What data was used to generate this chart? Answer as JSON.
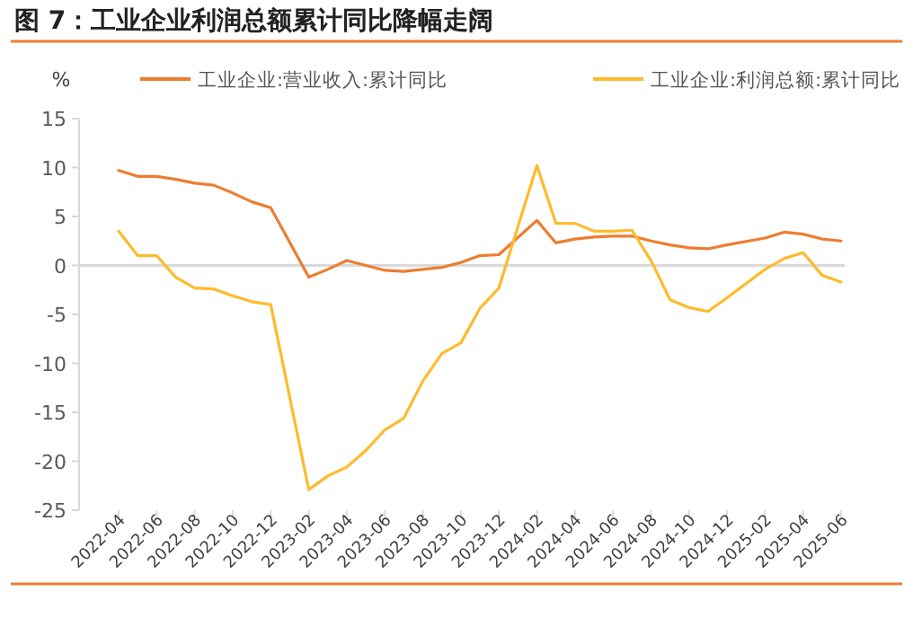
{
  "chart_data": {
    "type": "line",
    "title": "图 7：工业企业利润总额累计同比降幅走阔",
    "ylabel": "%",
    "categories": [
      "2022-04",
      null,
      "2022-06",
      null,
      "2022-08",
      null,
      "2022-10",
      null,
      "2022-12",
      null,
      "2023-02",
      null,
      "2023-04",
      null,
      "2023-06",
      null,
      "2023-08",
      null,
      "2023-10",
      null,
      "2023-12",
      null,
      "2024-02",
      null,
      "2024-04",
      null,
      "2024-06",
      null,
      "2024-08",
      null,
      "2024-10",
      null,
      "2024-12",
      null,
      "2025-02",
      null,
      "2025-04",
      null,
      "2025-06"
    ],
    "series": [
      {
        "name": "工业企业:营业收入:累计同比",
        "color": "#ed7d31",
        "values": [
          9.7,
          9.1,
          9.1,
          8.8,
          8.4,
          8.2,
          7.4,
          6.5,
          5.9,
          null,
          -1.2,
          -0.4,
          0.5,
          0.0,
          -0.5,
          -0.6,
          -0.4,
          -0.2,
          0.3,
          1.0,
          1.1,
          null,
          4.6,
          2.3,
          2.7,
          2.9,
          3.0,
          3.0,
          2.5,
          2.1,
          1.8,
          1.7,
          2.1,
          null,
          2.8,
          3.4,
          3.2,
          2.7,
          2.5
        ]
      },
      {
        "name": "工业企业:利润总额:累计同比",
        "color": "#fdbb2d",
        "values": [
          3.5,
          1.0,
          1.0,
          -1.2,
          -2.3,
          -2.4,
          -3.1,
          -3.7,
          -4.0,
          null,
          -22.9,
          -21.5,
          -20.6,
          -18.9,
          -16.8,
          -15.6,
          -11.8,
          -9.0,
          -7.9,
          -4.4,
          -2.3,
          null,
          10.2,
          4.3,
          4.3,
          3.5,
          3.5,
          3.6,
          0.5,
          -3.5,
          -4.3,
          -4.7,
          -3.3,
          null,
          -0.4,
          0.7,
          1.3,
          -1.0,
          -1.7
        ]
      }
    ],
    "ylim": [
      -25,
      15
    ],
    "yticks": [
      -25,
      -20,
      -15,
      -10,
      -5,
      0,
      5,
      10,
      15
    ],
    "ref_lines": [
      {
        "axis": "y",
        "value": 0,
        "color": "#d9d9d9"
      }
    ],
    "grid": false,
    "legend": "top",
    "marker": "none",
    "line_style": "solid"
  }
}
